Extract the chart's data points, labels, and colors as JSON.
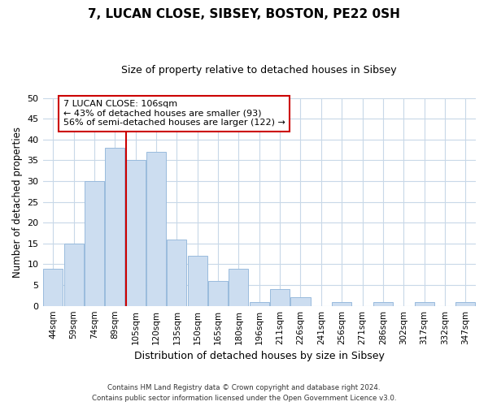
{
  "title": "7, LUCAN CLOSE, SIBSEY, BOSTON, PE22 0SH",
  "subtitle": "Size of property relative to detached houses in Sibsey",
  "xlabel": "Distribution of detached houses by size in Sibsey",
  "ylabel": "Number of detached properties",
  "bar_labels": [
    "44sqm",
    "59sqm",
    "74sqm",
    "89sqm",
    "105sqm",
    "120sqm",
    "135sqm",
    "150sqm",
    "165sqm",
    "180sqm",
    "196sqm",
    "211sqm",
    "226sqm",
    "241sqm",
    "256sqm",
    "271sqm",
    "286sqm",
    "302sqm",
    "317sqm",
    "332sqm",
    "347sqm"
  ],
  "bar_values": [
    9,
    15,
    30,
    38,
    35,
    37,
    16,
    12,
    6,
    9,
    1,
    4,
    2,
    0,
    1,
    0,
    1,
    0,
    1,
    0,
    1
  ],
  "bar_color": "#ccddf0",
  "bar_edge_color": "#99bbdd",
  "vline_index": 4,
  "vline_color": "#cc0000",
  "ylim": [
    0,
    50
  ],
  "yticks": [
    0,
    5,
    10,
    15,
    20,
    25,
    30,
    35,
    40,
    45,
    50
  ],
  "annotation_title": "7 LUCAN CLOSE: 106sqm",
  "annotation_line1": "← 43% of detached houses are smaller (93)",
  "annotation_line2": "56% of semi-detached houses are larger (122) →",
  "annotation_box_color": "#ffffff",
  "annotation_box_edge": "#cc0000",
  "footer_line1": "Contains HM Land Registry data © Crown copyright and database right 2024.",
  "footer_line2": "Contains public sector information licensed under the Open Government Licence v3.0.",
  "bg_color": "#ffffff",
  "grid_color": "#c8d8e8"
}
